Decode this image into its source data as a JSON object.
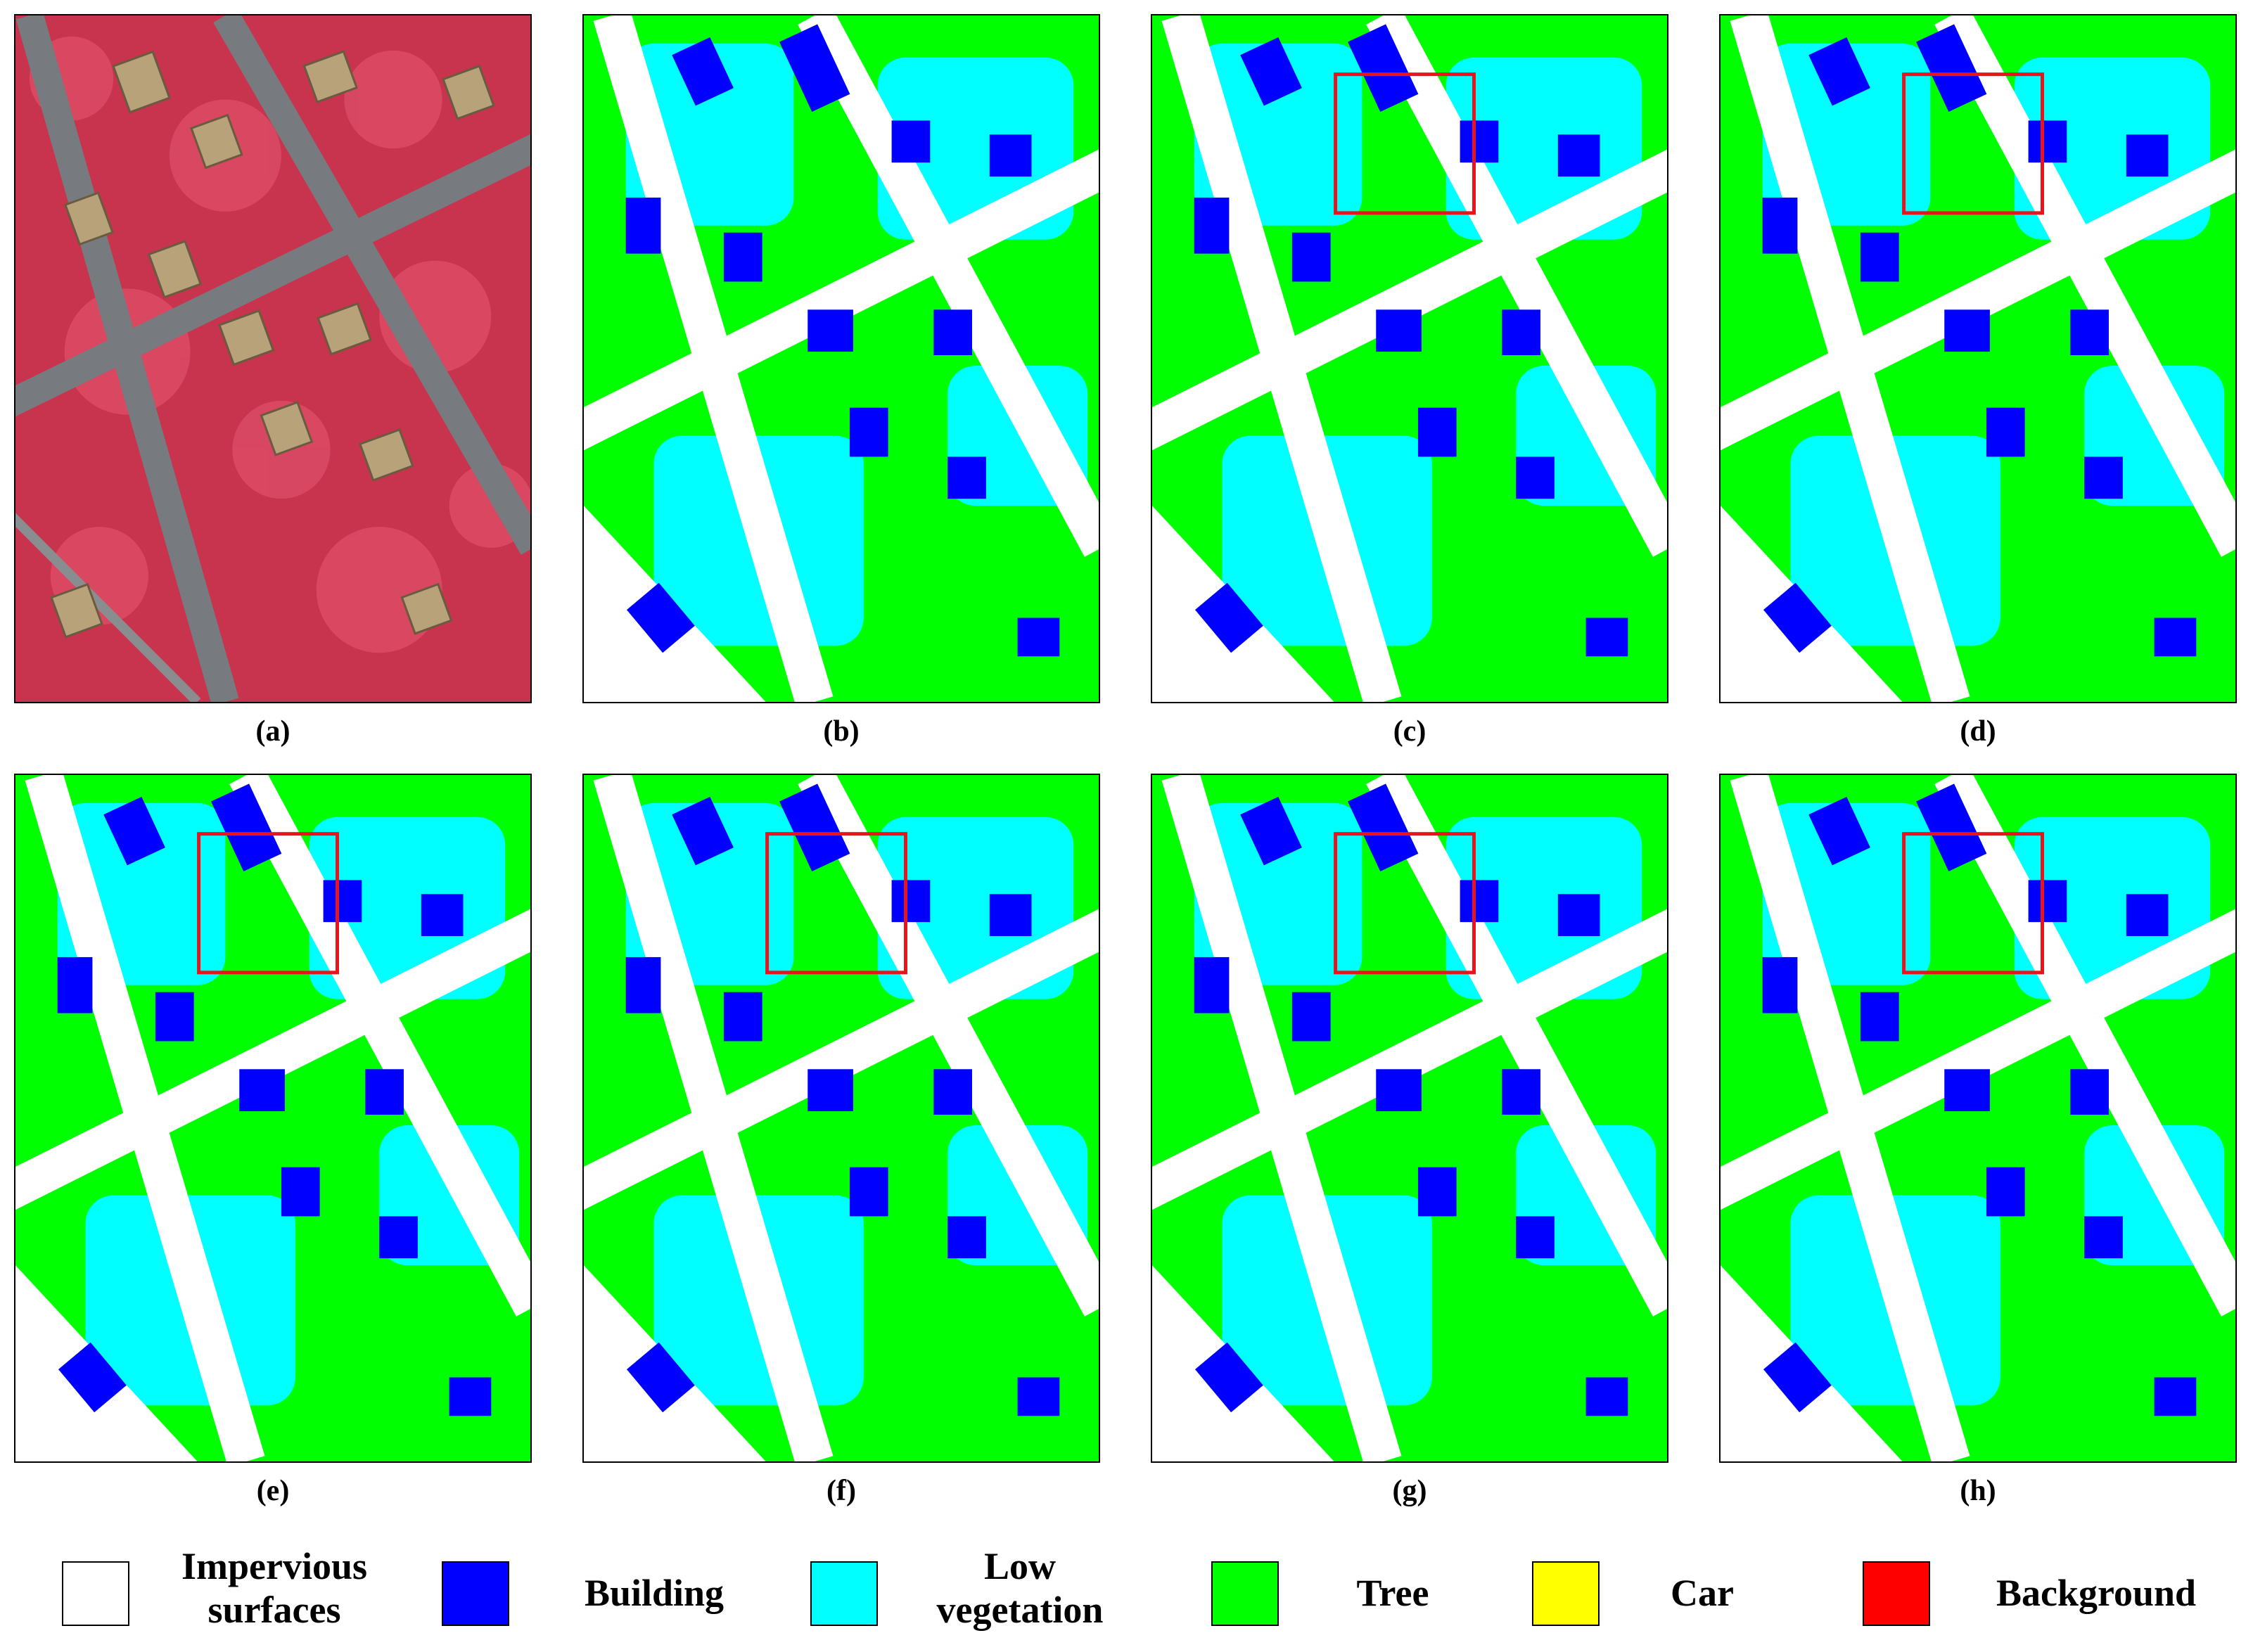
{
  "panels": [
    {
      "label": "(a)",
      "kind": "aerial-image"
    },
    {
      "label": "(b)",
      "kind": "segmentation-map"
    },
    {
      "label": "(c)",
      "kind": "segmentation-map"
    },
    {
      "label": "(d)",
      "kind": "segmentation-map"
    },
    {
      "label": "(e)",
      "kind": "segmentation-map"
    },
    {
      "label": "(f)",
      "kind": "segmentation-map"
    },
    {
      "label": "(g)",
      "kind": "segmentation-map"
    },
    {
      "label": "(h)",
      "kind": "segmentation-map"
    }
  ],
  "legend": [
    {
      "line1": "Impervious",
      "line2": "surfaces",
      "color": "#ffffff"
    },
    {
      "line1": "Building",
      "line2": "",
      "color": "#0000ff"
    },
    {
      "line1": "Low",
      "line2": "vegetation",
      "color": "#00ffff"
    },
    {
      "line1": "Tree",
      "line2": "",
      "color": "#00ff00"
    },
    {
      "line1": "Car",
      "line2": "",
      "color": "#ffff00"
    },
    {
      "line1": "Background",
      "line2": "",
      "color": "#ff0000"
    }
  ],
  "highlight_color": "#e8141b"
}
